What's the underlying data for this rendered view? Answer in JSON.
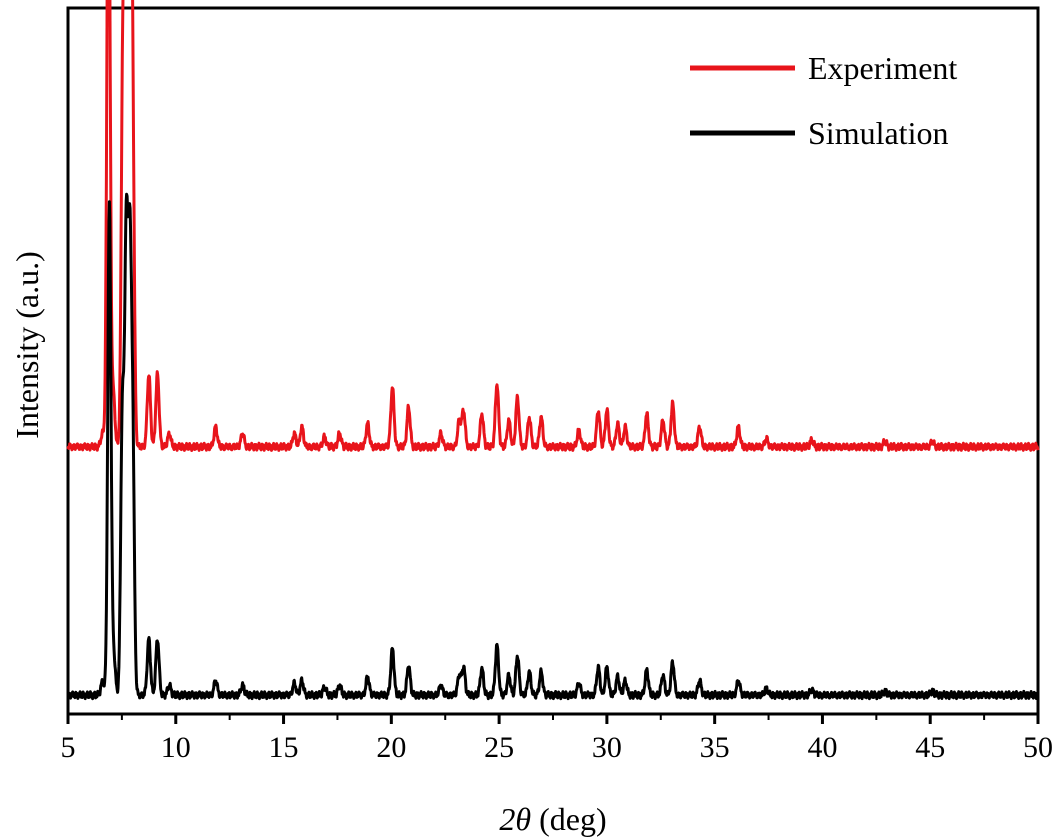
{
  "chart_data": {
    "type": "line",
    "title": "",
    "xlabel_symbol": "2θ",
    "xlabel_unit": " (deg)",
    "ylabel": "Intensity (a.u.)",
    "xlim": [
      5,
      50
    ],
    "x_ticks": [
      5,
      10,
      15,
      20,
      25,
      30,
      35,
      40,
      45,
      50
    ],
    "y_ticks": [],
    "grid": false,
    "legend_position": "top-right",
    "normalized_intensity": true,
    "series": [
      {
        "name": "Experiment",
        "color": "#e8141b",
        "baseline": 0.39,
        "peaks": [
          [
            6.6,
            0.02
          ],
          [
            6.88,
            0.985
          ],
          [
            7.1,
            0.08
          ],
          [
            7.55,
            0.62
          ],
          [
            7.72,
            0.82
          ],
          [
            7.88,
            0.77
          ],
          [
            8.0,
            0.45
          ],
          [
            8.75,
            0.11
          ],
          [
            9.15,
            0.11
          ],
          [
            9.7,
            0.02
          ],
          [
            11.85,
            0.03
          ],
          [
            13.1,
            0.02
          ],
          [
            15.5,
            0.02
          ],
          [
            15.85,
            0.03
          ],
          [
            16.9,
            0.015
          ],
          [
            17.6,
            0.02
          ],
          [
            18.9,
            0.035
          ],
          [
            20.05,
            0.09
          ],
          [
            20.8,
            0.06
          ],
          [
            22.3,
            0.02
          ],
          [
            23.15,
            0.04
          ],
          [
            23.35,
            0.055
          ],
          [
            24.2,
            0.05
          ],
          [
            24.9,
            0.095
          ],
          [
            25.45,
            0.04
          ],
          [
            25.85,
            0.075
          ],
          [
            26.4,
            0.045
          ],
          [
            26.95,
            0.045
          ],
          [
            28.7,
            0.025
          ],
          [
            29.6,
            0.055
          ],
          [
            30.0,
            0.055
          ],
          [
            30.5,
            0.035
          ],
          [
            30.85,
            0.03
          ],
          [
            31.85,
            0.05
          ],
          [
            32.6,
            0.04
          ],
          [
            33.05,
            0.065
          ],
          [
            34.3,
            0.03
          ],
          [
            36.1,
            0.03
          ],
          [
            37.4,
            0.012
          ],
          [
            39.5,
            0.01
          ],
          [
            42.9,
            0.008
          ],
          [
            45.1,
            0.008
          ]
        ]
      },
      {
        "name": "Simulation",
        "color": "#000000",
        "baseline": 0.015,
        "peaks": [
          [
            6.6,
            0.02
          ],
          [
            6.92,
            0.74
          ],
          [
            7.12,
            0.06
          ],
          [
            7.52,
            0.42
          ],
          [
            7.7,
            0.66
          ],
          [
            7.86,
            0.61
          ],
          [
            8.0,
            0.38
          ],
          [
            8.75,
            0.085
          ],
          [
            9.15,
            0.085
          ],
          [
            9.7,
            0.015
          ],
          [
            11.85,
            0.022
          ],
          [
            13.1,
            0.015
          ],
          [
            15.5,
            0.018
          ],
          [
            15.85,
            0.022
          ],
          [
            16.9,
            0.012
          ],
          [
            17.6,
            0.015
          ],
          [
            18.9,
            0.028
          ],
          [
            20.05,
            0.07
          ],
          [
            20.8,
            0.045
          ],
          [
            22.3,
            0.015
          ],
          [
            23.15,
            0.03
          ],
          [
            23.35,
            0.042
          ],
          [
            24.2,
            0.04
          ],
          [
            24.9,
            0.075
          ],
          [
            25.45,
            0.03
          ],
          [
            25.85,
            0.06
          ],
          [
            26.4,
            0.035
          ],
          [
            26.95,
            0.035
          ],
          [
            28.7,
            0.018
          ],
          [
            29.6,
            0.042
          ],
          [
            30.0,
            0.042
          ],
          [
            30.5,
            0.028
          ],
          [
            30.85,
            0.022
          ],
          [
            31.85,
            0.038
          ],
          [
            32.6,
            0.03
          ],
          [
            33.05,
            0.05
          ],
          [
            34.3,
            0.022
          ],
          [
            36.1,
            0.022
          ],
          [
            37.4,
            0.01
          ],
          [
            39.5,
            0.008
          ],
          [
            42.9,
            0.006
          ],
          [
            45.1,
            0.006
          ]
        ]
      }
    ]
  }
}
